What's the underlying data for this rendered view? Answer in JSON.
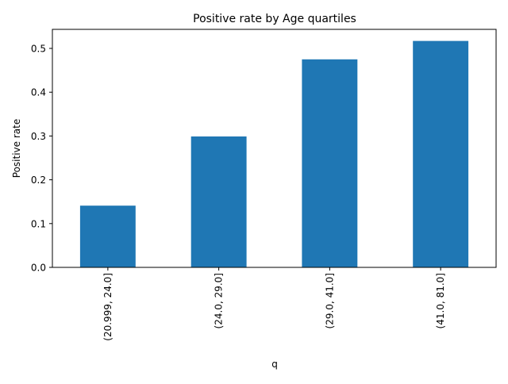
{
  "chart_data": {
    "type": "bar",
    "title": "Positive rate by Age quartiles",
    "xlabel": "q",
    "ylabel": "Positive rate",
    "categories": [
      "(20.999, 24.0]",
      "(24.0, 29.0]",
      "(29.0, 41.0]",
      "(41.0, 81.0]"
    ],
    "values": [
      0.141,
      0.299,
      0.475,
      0.517
    ],
    "ylim": [
      0,
      0.5435
    ],
    "yticks": [
      0.0,
      0.1,
      0.2,
      0.3,
      0.4,
      0.5
    ],
    "ytick_labels": [
      "0.0",
      "0.1",
      "0.2",
      "0.3",
      "0.4",
      "0.5"
    ],
    "grid": false,
    "legend": "none",
    "bar_color": "#1f77b4"
  }
}
